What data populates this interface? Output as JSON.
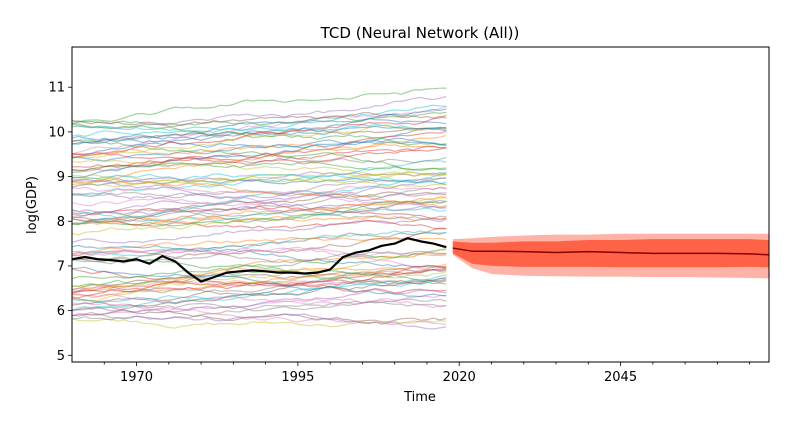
{
  "chart_data": {
    "type": "line",
    "title": "TCD (Neural Network (All))",
    "xlabel": "Time",
    "ylabel": "log(GDP)",
    "xlim": [
      1960,
      2068
    ],
    "ylim": [
      4.85,
      11.9
    ],
    "x_ticks": [
      1970,
      1995,
      2020,
      2045
    ],
    "y_ticks": [
      5,
      6,
      7,
      8,
      9,
      10,
      11
    ],
    "grid": false,
    "legend": "none",
    "colors": {
      "highlight": "#000000",
      "forecast_line": "#8b0000",
      "band_inner": "#ff6347",
      "band_outer": "#ffb3a7"
    },
    "background_series": {
      "years": [
        1960,
        2018
      ],
      "count": 90,
      "start_range": [
        5.8,
        10.3
      ],
      "alpha": 0.45
    },
    "highlight_series": {
      "x": [
        1960,
        1962,
        1964,
        1966,
        1968,
        1970,
        1972,
        1974,
        1976,
        1978,
        1980,
        1982,
        1984,
        1986,
        1988,
        1990,
        1992,
        1994,
        1996,
        1998,
        2000,
        2002,
        2004,
        2006,
        2008,
        2010,
        2012,
        2014,
        2016,
        2018
      ],
      "y": [
        7.15,
        7.2,
        7.15,
        7.13,
        7.1,
        7.15,
        7.05,
        7.22,
        7.1,
        6.85,
        6.65,
        6.75,
        6.85,
        6.88,
        6.9,
        6.88,
        6.85,
        6.85,
        6.83,
        6.85,
        6.92,
        7.2,
        7.3,
        7.35,
        7.45,
        7.5,
        7.62,
        7.55,
        7.5,
        7.42
      ]
    },
    "forecast": {
      "x": [
        2019,
        2022,
        2025,
        2030,
        2035,
        2040,
        2045,
        2050,
        2055,
        2060,
        2065,
        2068
      ],
      "median": [
        7.4,
        7.33,
        7.33,
        7.32,
        7.3,
        7.32,
        7.3,
        7.28,
        7.28,
        7.28,
        7.27,
        7.25
      ],
      "inner_low": [
        7.28,
        7.05,
        7.0,
        6.98,
        6.98,
        6.98,
        6.97,
        6.97,
        6.97,
        6.97,
        6.98,
        6.97
      ],
      "inner_high": [
        7.55,
        7.52,
        7.52,
        7.55,
        7.55,
        7.58,
        7.58,
        7.6,
        7.6,
        7.6,
        7.6,
        7.58
      ],
      "outer_low": [
        7.25,
        6.95,
        6.82,
        6.78,
        6.77,
        6.76,
        6.76,
        6.75,
        6.75,
        6.74,
        6.73,
        6.72
      ],
      "outer_high": [
        7.6,
        7.62,
        7.65,
        7.68,
        7.7,
        7.7,
        7.72,
        7.72,
        7.72,
        7.72,
        7.72,
        7.72
      ]
    }
  }
}
